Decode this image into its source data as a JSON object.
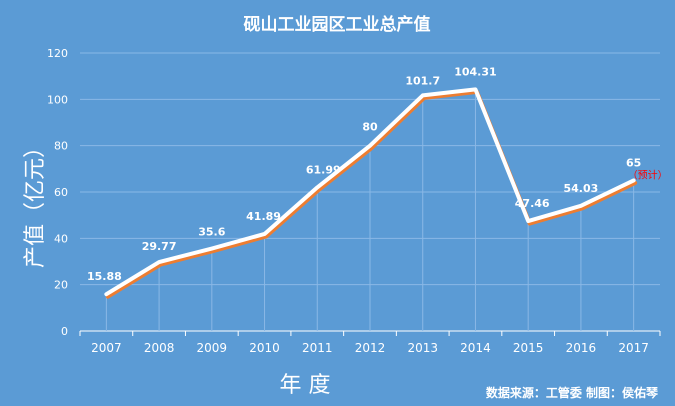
{
  "chart_data": {
    "type": "line",
    "title": "砚山工业园区工业总产值",
    "ylabel": "产值（亿元）",
    "xlabel": "年  度",
    "categories": [
      "2007",
      "2008",
      "2009",
      "2010",
      "2011",
      "2012",
      "2013",
      "2014",
      "2015",
      "2016",
      "2017"
    ],
    "values": [
      15.88,
      29.77,
      35.6,
      41.89,
      61.99,
      80,
      101.7,
      104.31,
      47.46,
      54.03,
      65
    ],
    "data_labels": [
      "15.88",
      "29.77",
      "35.6",
      "41.89",
      "61.99",
      "80",
      "101.7",
      "104.31",
      "47.46",
      "54.03",
      "65"
    ],
    "annotation": "（预计）",
    "source": "数据来源：工管委    制图：侯佑琴",
    "ylim": [
      0,
      120
    ],
    "yticks": [
      0,
      20,
      40,
      60,
      80,
      100,
      120
    ],
    "grid": true,
    "colors": {
      "background": "#5b9bd5",
      "line": "#ffffff",
      "shadow": "#ed7d31",
      "annotation": "#ff0000",
      "text": "#ffffff",
      "gridline": "#8ab8e6"
    }
  }
}
